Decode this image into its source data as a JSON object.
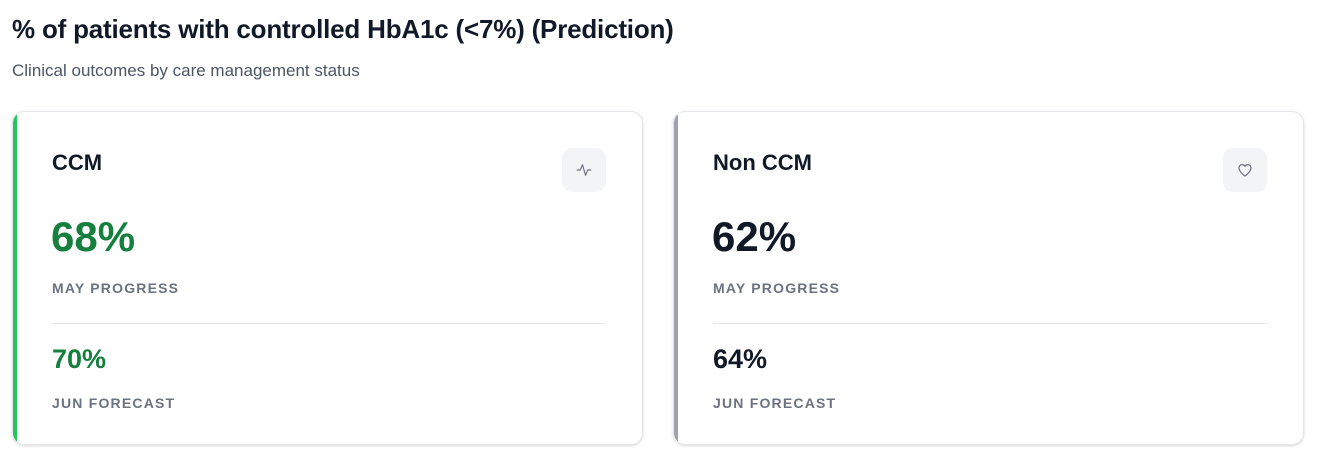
{
  "header": {
    "title": "% of patients with controlled HbA1c (<7%) (Prediction)",
    "subtitle": "Clinical outcomes by care management status"
  },
  "cards": [
    {
      "title": "CCM",
      "icon": "activity-pulse-icon",
      "accent_color": "#22c55e",
      "value_color": "#15803d",
      "primary_value": "68%",
      "primary_label": "MAY PROGRESS",
      "secondary_value": "70%",
      "secondary_label": "JUN FORECAST"
    },
    {
      "title": "Non CCM",
      "icon": "heart-icon",
      "accent_color": "#9ca3af",
      "value_color": "#111827",
      "primary_value": "62%",
      "primary_label": "MAY PROGRESS",
      "secondary_value": "64%",
      "secondary_label": "JUN FORECAST"
    }
  ]
}
